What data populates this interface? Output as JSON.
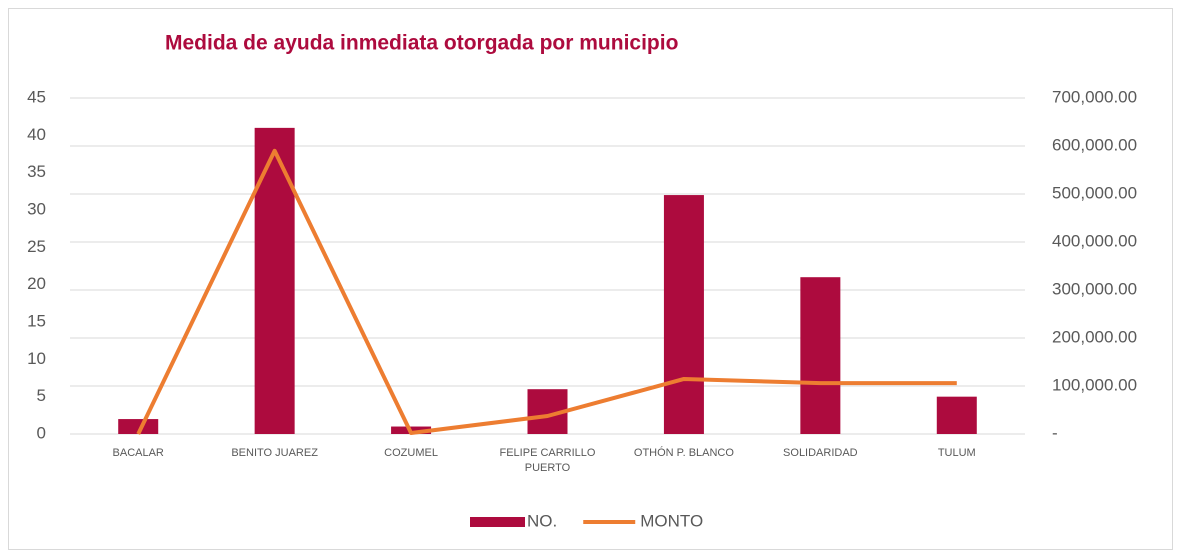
{
  "chart_data": {
    "type": "bar",
    "title": "Medida de ayuda inmediata otorgada por municipio",
    "categories": [
      "BACALAR",
      "BENITO JUAREZ",
      "COZUMEL",
      "FELIPE CARRILLO PUERTO",
      "OTHÓN P. BLANCO",
      "SOLIDARIDAD",
      "TULUM"
    ],
    "series": [
      {
        "name": "NO.",
        "type": "bar",
        "color": "#ad0b3e",
        "values": [
          2,
          41,
          1,
          6,
          32,
          21,
          5
        ]
      },
      {
        "name": "MONTO",
        "type": "line",
        "axis": "y2",
        "color": "#ed7d31",
        "values": [
          0,
          590000,
          2000,
          37500,
          114600,
          106000,
          106000
        ]
      }
    ],
    "ylim": [
      0,
      45
    ],
    "yticks": [
      0,
      5,
      10,
      15,
      20,
      25,
      30,
      35,
      40,
      45
    ],
    "y2lim": [
      0,
      700000
    ],
    "y2ticks": [
      {
        "value": 0,
        "label": "-"
      },
      {
        "value": 100000,
        "label": "100,000.00"
      },
      {
        "value": 200000,
        "label": "200,000.00"
      },
      {
        "value": 300000,
        "label": "300,000.00"
      },
      {
        "value": 400000,
        "label": "400,000.00"
      },
      {
        "value": 500000,
        "label": "500,000.00"
      },
      {
        "value": 600000,
        "label": "600,000.00"
      },
      {
        "value": 700000,
        "label": "700,000.00"
      }
    ],
    "grid": true,
    "legend": "bottom"
  }
}
